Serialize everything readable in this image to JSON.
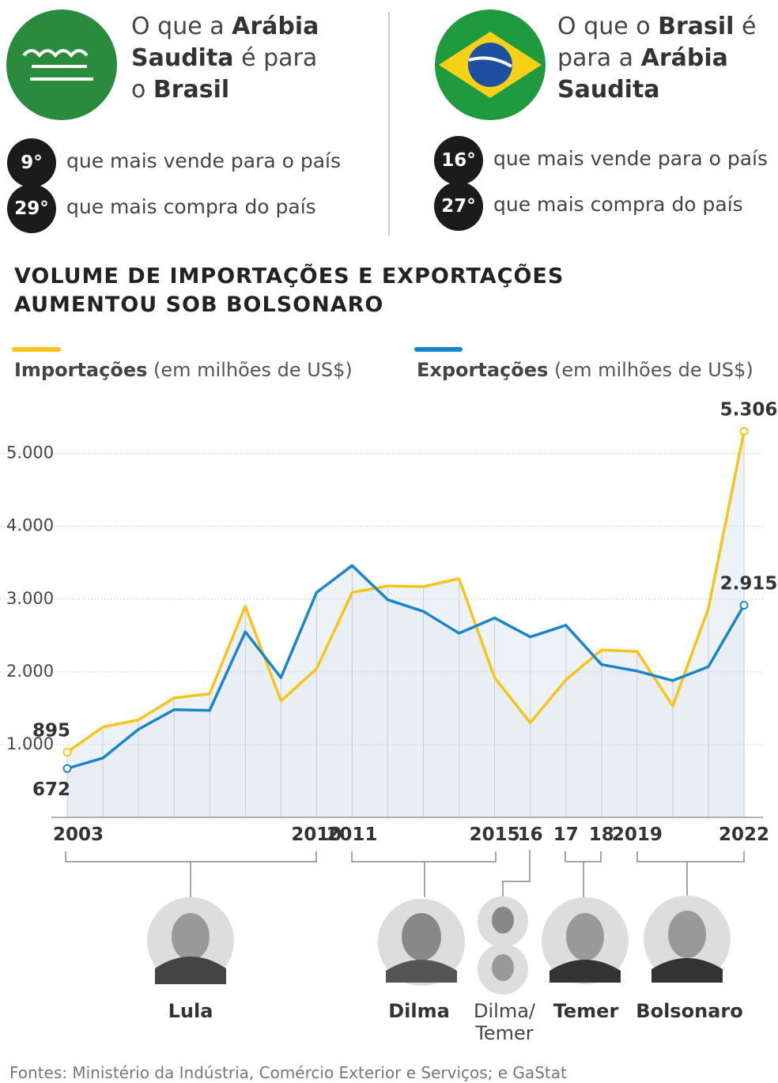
{
  "panels": [
    {
      "title_lines": [
        [
          {
            "text": "O que a ",
            "bold": false
          },
          {
            "text": "Arábia",
            "bold": true
          }
        ],
        [
          {
            "text": "Saudita",
            "bold": true
          },
          {
            "text": " é para",
            "bold": false
          }
        ],
        [
          {
            "text": "o ",
            "bold": false
          },
          {
            "text": "Brasil",
            "bold": true
          }
        ]
      ],
      "rankings": [
        {
          "rank": "9°",
          "text": "que mais vende para o país"
        },
        {
          "rank": "29°",
          "text": "que mais compra do país"
        }
      ]
    },
    {
      "title_lines": [
        [
          {
            "text": "O que o ",
            "bold": false
          },
          {
            "text": "Brasil",
            "bold": true
          },
          {
            "text": " é",
            "bold": false
          }
        ],
        [
          {
            "text": "para a ",
            "bold": false
          },
          {
            "text": "Arábia",
            "bold": true
          }
        ],
        [
          {
            "text": "Saudita",
            "bold": true
          }
        ]
      ],
      "rankings": [
        {
          "rank": "16°",
          "text": "que mais vende para o país"
        },
        {
          "rank": "27°",
          "text": "que mais compra do país"
        }
      ]
    }
  ],
  "chart_data": {
    "type": "line",
    "title": "VOLUME DE IMPORTAÇÕES E EXPORTAÇÕES AUMENTOU SOB BOLSONARO",
    "categories": [
      "2003",
      null,
      null,
      null,
      null,
      null,
      null,
      "2010",
      "2011",
      null,
      null,
      null,
      "2015",
      "16",
      "17",
      "18",
      "2019",
      null,
      null,
      "2022"
    ],
    "series": [
      {
        "name": "Importações",
        "unit": "(em milhões de US$)",
        "color": "#f6c51c",
        "values": [
          895,
          1240,
          1340,
          1640,
          1700,
          2900,
          1600,
          2040,
          3090,
          3180,
          3170,
          3280,
          1920,
          1300,
          1890,
          2300,
          2280,
          1530,
          2870,
          5306
        ],
        "value_labels": [
          "895",
          null,
          null,
          null,
          null,
          null,
          null,
          null,
          null,
          null,
          null,
          null,
          null,
          null,
          null,
          null,
          null,
          null,
          null,
          "5.306"
        ]
      },
      {
        "name": "Exportações",
        "unit": "(em milhões de US$)",
        "color": "#1a86c8",
        "values": [
          672,
          815,
          1210,
          1480,
          1470,
          2550,
          1920,
          3090,
          3460,
          2990,
          2830,
          2530,
          2740,
          2480,
          2640,
          2100,
          2010,
          1880,
          2070,
          2915
        ],
        "value_labels": [
          "672",
          null,
          null,
          null,
          null,
          null,
          null,
          null,
          null,
          null,
          null,
          null,
          null,
          null,
          null,
          null,
          null,
          null,
          null,
          "2.915"
        ]
      }
    ],
    "ylim": [
      0,
      5800
    ],
    "yticks": [
      {
        "value": 1000,
        "label": "1.000"
      },
      {
        "value": 2000,
        "label": "2.000"
      },
      {
        "value": 3000,
        "label": "3.000"
      },
      {
        "value": 4000,
        "label": "4.000"
      },
      {
        "value": 5000,
        "label": "5.000"
      }
    ],
    "grid": true,
    "periods": [
      "Lula",
      "Dilma",
      "Dilma/ Temer",
      "Temer",
      "Bolsonaro"
    ],
    "source": "Fontes: Ministério da Indústria, Comércio Exterior e Serviços; e GaStat"
  }
}
